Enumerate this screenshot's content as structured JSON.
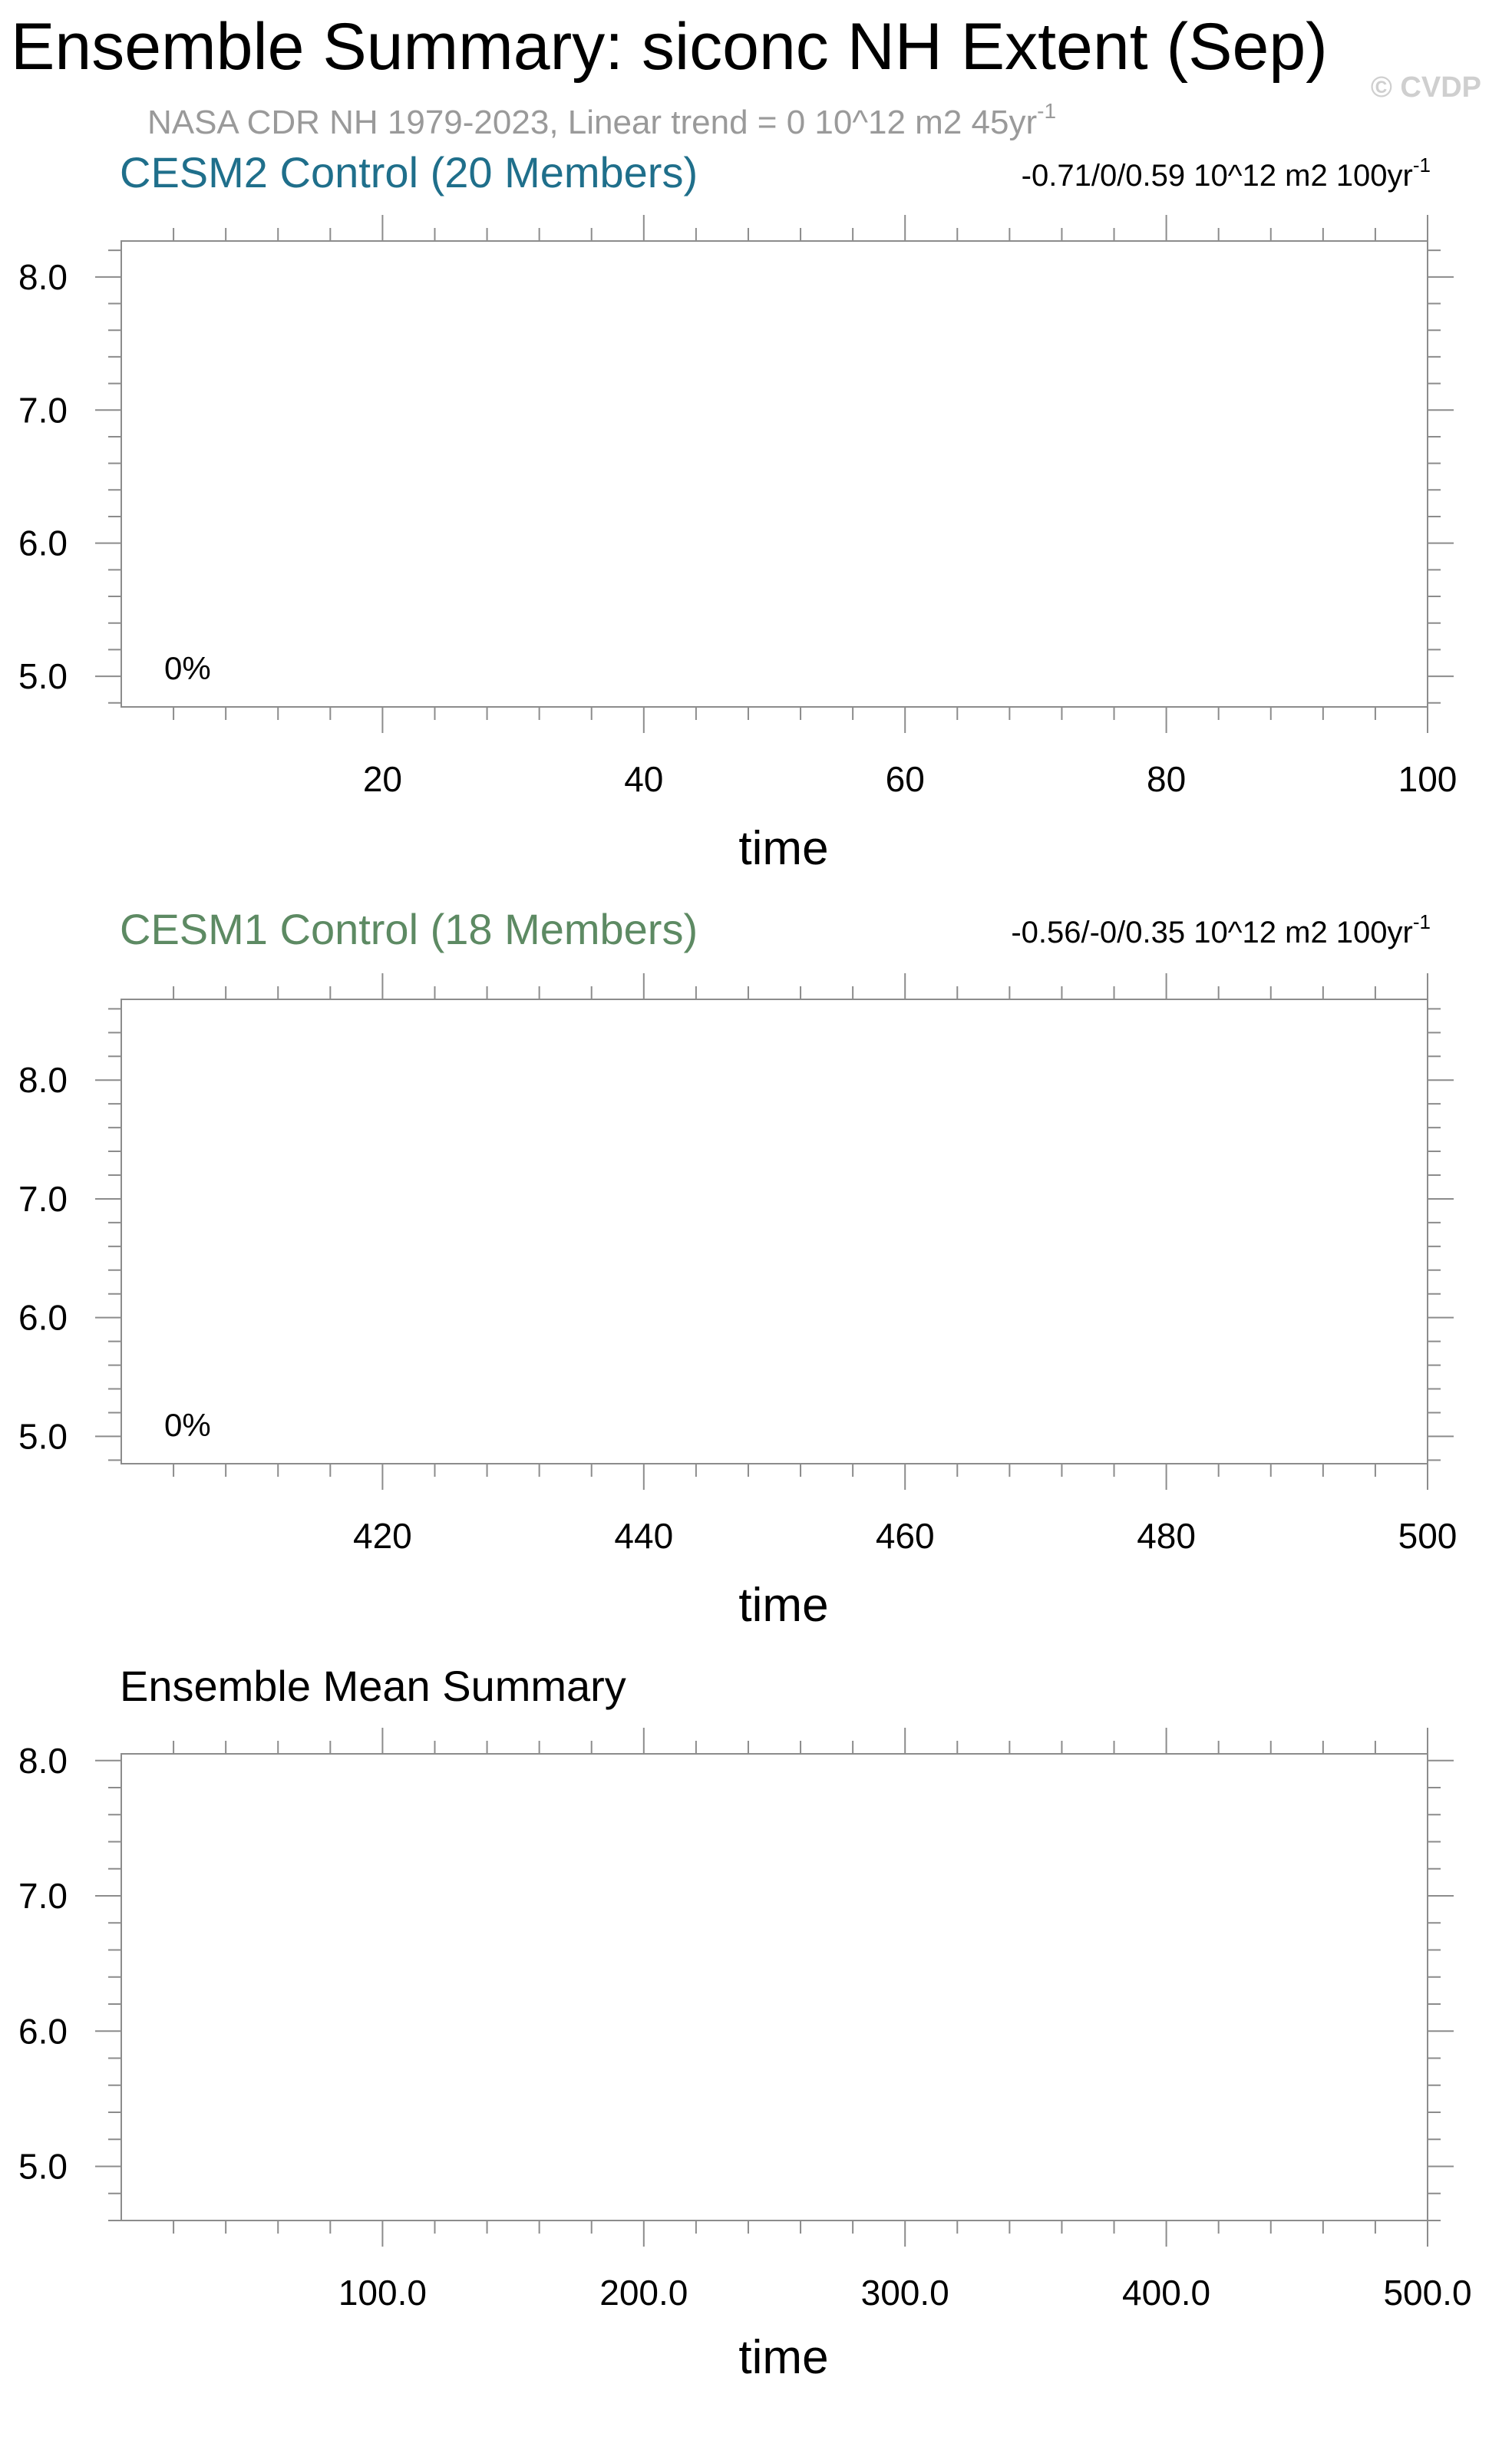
{
  "page": {
    "title": "Ensemble Summary: siconc NH Extent (Sep)",
    "subtitle_main": "NASA CDR NH 1979-2023, Linear trend = 0 10^12 m2 45yr",
    "subtitle_sup": "-1",
    "watermark": "© CVDP"
  },
  "colors": {
    "cesm2": "#1f6f8b",
    "cesm1": "#5d8a63",
    "subtitle": "#9a9a9a",
    "watermark": "#cfcfcf",
    "frame": "#8c8c8c"
  },
  "chart_data": [
    {
      "type": "line",
      "title": "CESM2 Control (20 Members)",
      "trend_main": "-0.71/0/0.59 10^12 m2 100yr",
      "trend_sup": "-1",
      "xlabel": "time",
      "ylabel": "",
      "xlim": [
        0,
        100
      ],
      "ylim": [
        4.77,
        8.27
      ],
      "xticks": [
        20,
        40,
        60,
        80,
        100
      ],
      "xtick_labels": [
        "20",
        "40",
        "60",
        "80",
        "100"
      ],
      "yticks": [
        5.0,
        6.0,
        7.0,
        8.0
      ],
      "ytick_labels": [
        "5.0",
        "6.0",
        "7.0",
        "8.0"
      ],
      "annotation": "0%",
      "series": [],
      "grid": false
    },
    {
      "type": "line",
      "title": "CESM1 Control (18 Members)",
      "trend_main": "-0.56/-0/0.35 10^12 m2 100yr",
      "trend_sup": "-1",
      "xlabel": "time",
      "ylabel": "",
      "xlim": [
        400,
        500
      ],
      "ylim": [
        4.77,
        8.68
      ],
      "xticks": [
        420,
        440,
        460,
        480,
        500
      ],
      "xtick_labels": [
        "420",
        "440",
        "460",
        "480",
        "500"
      ],
      "yticks": [
        5.0,
        6.0,
        7.0,
        8.0
      ],
      "ytick_labels": [
        "5.0",
        "6.0",
        "7.0",
        "8.0"
      ],
      "annotation": "0%",
      "series": [],
      "grid": false
    },
    {
      "type": "line",
      "title": "Ensemble Mean Summary",
      "trend_main": "",
      "trend_sup": "",
      "xlabel": "time",
      "ylabel": "",
      "xlim": [
        0,
        500
      ],
      "ylim": [
        4.6,
        8.05
      ],
      "xticks": [
        100,
        200,
        300,
        400,
        500
      ],
      "xtick_labels": [
        "100.0",
        "200.0",
        "300.0",
        "400.0",
        "500.0"
      ],
      "yticks": [
        5.0,
        6.0,
        7.0,
        8.0
      ],
      "ytick_labels": [
        "5.0",
        "6.0",
        "7.0",
        "8.0"
      ],
      "annotation": "",
      "series": [],
      "grid": false
    }
  ]
}
